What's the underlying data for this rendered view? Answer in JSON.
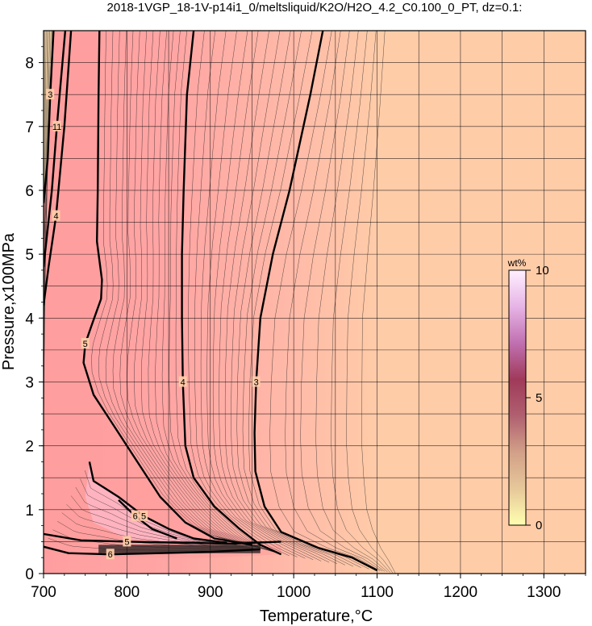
{
  "chart_data": {
    "type": "heatmap",
    "title": "2018-1VGP_18-1V-p14i1_0/meltsliquid/K2O/H2O_4.2_C0.100_0_PT, dz=0.1:",
    "xlabel": "Temperature,°C",
    "ylabel": "Pressure,x100MPa",
    "xlim": [
      700,
      1350
    ],
    "ylim": [
      0,
      8.5
    ],
    "x_ticks": [
      "700",
      "800",
      "900",
      "1000",
      "1100",
      "1200",
      "1300"
    ],
    "y_ticks": [
      "0",
      "1",
      "2",
      "3",
      "4",
      "5",
      "6",
      "7",
      "8"
    ],
    "grid": true,
    "colorbar": {
      "unit": "wt%",
      "range": [
        0,
        10
      ],
      "ticks": [
        "0",
        "5",
        "10"
      ],
      "placement": "right-inside",
      "colors": [
        "#ffffb0",
        "#e6c89a",
        "#d2a088",
        "#b06070",
        "#a03a5a",
        "#c070b0",
        "#e6b4e6",
        "#fff0ff"
      ]
    },
    "background_colors": {
      "high_temperature": "#ffcca8",
      "low_temperature": "#ffa8a8"
    },
    "major_contours": [
      {
        "level": "3",
        "label": "3",
        "points": [
          [
            1035,
            8.5
          ],
          [
            1020,
            7.5
          ],
          [
            995,
            6
          ],
          [
            975,
            5
          ],
          [
            960,
            4
          ],
          [
            955,
            3
          ],
          [
            953,
            2.2
          ],
          [
            954,
            1.6
          ],
          [
            965,
            1.05
          ],
          [
            985,
            0.65
          ],
          [
            1030,
            0.4
          ],
          [
            1070,
            0.25
          ],
          [
            1100,
            0.05
          ]
        ]
      },
      {
        "level": "4",
        "label": "4",
        "points": [
          [
            880,
            8.5
          ],
          [
            872,
            7.5
          ],
          [
            868,
            6
          ],
          [
            866,
            5
          ],
          [
            866,
            4
          ],
          [
            867,
            3
          ],
          [
            870,
            2
          ],
          [
            880,
            1.5
          ],
          [
            905,
            1.05
          ],
          [
            935,
            0.7
          ],
          [
            960,
            0.45
          ],
          [
            985,
            0.3
          ]
        ]
      },
      {
        "level": "5",
        "label": "5",
        "points": [
          [
            767,
            8.5
          ],
          [
            766,
            7.5
          ],
          [
            765,
            6
          ],
          [
            764,
            5.2
          ],
          [
            770,
            4.6
          ],
          [
            769,
            4.3
          ],
          [
            758,
            3.9
          ],
          [
            750,
            3.6
          ],
          [
            748,
            3.3
          ],
          [
            760,
            2.8
          ],
          [
            785,
            2.3
          ],
          [
            810,
            1.8
          ],
          [
            840,
            1.2
          ],
          [
            870,
            0.8
          ],
          [
            905,
            0.55
          ],
          [
            950,
            0.45
          ]
        ]
      },
      {
        "level": "5",
        "label": "5",
        "points": [
          [
            755,
            1.75
          ],
          [
            760,
            1.45
          ],
          [
            790,
            1.2
          ],
          [
            820,
            0.9
          ],
          [
            850,
            0.7
          ],
          [
            880,
            0.55
          ],
          [
            920,
            0.48
          ]
        ]
      },
      {
        "level": "6",
        "label": "6",
        "points": [
          [
            790,
            1.15
          ],
          [
            810,
            0.9
          ],
          [
            830,
            0.7
          ],
          [
            860,
            0.55
          ]
        ]
      },
      {
        "level": "6",
        "label": "6",
        "points": [
          [
            700,
            0.42
          ],
          [
            730,
            0.32
          ],
          [
            780,
            0.3
          ],
          [
            840,
            0.32
          ],
          [
            900,
            0.34
          ],
          [
            960,
            0.38
          ]
        ]
      },
      {
        "level": "5",
        "label": "5",
        "points": [
          [
            700,
            0.62
          ],
          [
            745,
            0.52
          ],
          [
            800,
            0.5
          ],
          [
            870,
            0.48
          ],
          [
            930,
            0.47
          ],
          [
            985,
            0.5
          ]
        ]
      },
      {
        "level": "4",
        "label": "4",
        "points": [
          [
            733,
            8.5
          ],
          [
            725,
            7.0
          ],
          [
            715,
            5.6
          ],
          [
            706,
            4.8
          ],
          [
            700,
            4.2
          ]
        ]
      },
      {
        "level": "3",
        "label": "3",
        "points": [
          [
            712,
            8.5
          ],
          [
            708,
            7.5
          ],
          [
            705,
            6.5
          ],
          [
            700,
            5.8
          ]
        ]
      },
      {
        "level": "11",
        "label": "11",
        "points": [
          [
            726,
            8.5
          ],
          [
            716,
            7.0
          ],
          [
            710,
            6.0
          ],
          [
            700,
            4.8
          ]
        ]
      }
    ],
    "contour_labels": [
      "3",
      "4",
      "5",
      "6",
      "11"
    ],
    "notes": "Filled contour map of melt K2O wt% over temperature and pressure; minor contours every 0.1 wt%."
  }
}
